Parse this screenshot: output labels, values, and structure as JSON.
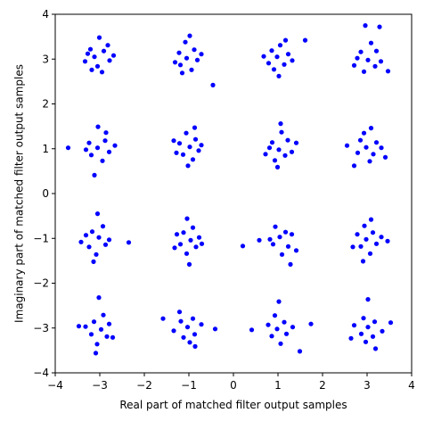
{
  "chart_data": {
    "type": "scatter",
    "title": "",
    "xlabel": "Real part of matched filter output samples",
    "ylabel": "Imaginary part of matched filter output samples",
    "xlim": [
      -4,
      4
    ],
    "ylim": [
      -4,
      4
    ],
    "xticks": [
      -4,
      -3,
      -2,
      -1,
      0,
      1,
      2,
      3,
      4
    ],
    "yticks": [
      -4,
      -3,
      -2,
      -1,
      0,
      1,
      2,
      3,
      4
    ],
    "x_tick_labels": [
      "−4",
      "−3",
      "−2",
      "−1",
      "0",
      "1",
      "2",
      "3",
      "4"
    ],
    "y_tick_labels": [
      "−4",
      "−3",
      "−2",
      "−1",
      "0",
      "1",
      "2",
      "3",
      "4"
    ],
    "grid": false,
    "legend": "none",
    "series": [
      {
        "marker": "circle",
        "color": "#0000ff",
        "constellation": "16-QAM",
        "points": [
          [
            -3.12,
            3.05
          ],
          [
            -2.91,
            3.18
          ],
          [
            -3.05,
            2.84
          ],
          [
            -2.78,
            2.97
          ],
          [
            -3.21,
            3.22
          ],
          [
            -2.95,
            2.71
          ],
          [
            -3.33,
            2.95
          ],
          [
            -2.82,
            3.31
          ],
          [
            -3.01,
            3.48
          ],
          [
            -3.18,
            2.76
          ],
          [
            -2.69,
            3.08
          ],
          [
            -3.27,
            3.12
          ],
          [
            -1.05,
            3.02
          ],
          [
            -0.88,
            3.21
          ],
          [
            -1.19,
            2.87
          ],
          [
            -0.94,
            2.76
          ],
          [
            -1.22,
            3.14
          ],
          [
            -0.81,
            2.98
          ],
          [
            -1.08,
            3.38
          ],
          [
            -0.72,
            3.11
          ],
          [
            -1.31,
            2.93
          ],
          [
            -0.98,
            3.52
          ],
          [
            -0.46,
            2.42
          ],
          [
            -1.15,
            2.69
          ],
          [
            0.98,
            3.05
          ],
          [
            1.14,
            2.88
          ],
          [
            0.86,
            3.19
          ],
          [
            1.23,
            3.11
          ],
          [
            0.79,
            2.91
          ],
          [
            1.05,
            3.31
          ],
          [
            1.32,
            2.97
          ],
          [
            0.91,
            2.77
          ],
          [
            1.17,
            3.42
          ],
          [
            0.68,
            3.06
          ],
          [
            1.61,
            3.42
          ],
          [
            1.02,
            2.62
          ],
          [
            3.02,
            2.98
          ],
          [
            2.86,
            3.16
          ],
          [
            3.18,
            2.84
          ],
          [
            2.93,
            2.72
          ],
          [
            3.21,
            3.18
          ],
          [
            2.78,
            3.02
          ],
          [
            3.09,
            3.36
          ],
          [
            3.31,
            2.95
          ],
          [
            2.71,
            2.86
          ],
          [
            2.96,
            3.75
          ],
          [
            3.28,
            3.72
          ],
          [
            3.47,
            2.73
          ],
          [
            -3.05,
            1.02
          ],
          [
            -2.88,
            1.18
          ],
          [
            -3.19,
            0.86
          ],
          [
            -2.79,
            0.93
          ],
          [
            -3.24,
            1.13
          ],
          [
            -2.94,
            0.73
          ],
          [
            -3.31,
            0.98
          ],
          [
            -2.86,
            1.36
          ],
          [
            -3.71,
            1.02
          ],
          [
            -3.12,
            0.41
          ],
          [
            -2.66,
            1.07
          ],
          [
            -3.04,
            1.49
          ],
          [
            -0.98,
            1.04
          ],
          [
            -1.13,
            0.87
          ],
          [
            -0.85,
            1.21
          ],
          [
            -1.21,
            1.12
          ],
          [
            -0.91,
            0.76
          ],
          [
            -1.06,
            1.35
          ],
          [
            -0.78,
            0.96
          ],
          [
            -1.28,
            0.91
          ],
          [
            -1.02,
            0.62
          ],
          [
            -0.87,
            1.47
          ],
          [
            -1.34,
            1.18
          ],
          [
            -0.72,
            1.08
          ],
          [
            1.02,
            0.98
          ],
          [
            0.87,
            1.14
          ],
          [
            1.16,
            0.85
          ],
          [
            0.93,
            0.74
          ],
          [
            1.22,
            1.19
          ],
          [
            0.81,
            1.02
          ],
          [
            1.08,
            1.37
          ],
          [
            1.31,
            0.93
          ],
          [
            0.72,
            0.88
          ],
          [
            0.99,
            0.59
          ],
          [
            1.41,
            1.13
          ],
          [
            1.06,
            1.56
          ],
          [
            2.98,
            1.03
          ],
          [
            3.14,
            0.88
          ],
          [
            2.85,
            1.19
          ],
          [
            3.21,
            1.14
          ],
          [
            2.79,
            0.91
          ],
          [
            3.06,
            0.72
          ],
          [
            3.32,
            1.02
          ],
          [
            2.93,
            1.35
          ],
          [
            2.55,
            1.07
          ],
          [
            3.41,
            0.81
          ],
          [
            3.09,
            1.46
          ],
          [
            2.71,
            0.62
          ],
          [
            -3.02,
            -0.98
          ],
          [
            -2.87,
            -1.14
          ],
          [
            -3.17,
            -0.85
          ],
          [
            -2.93,
            -0.73
          ],
          [
            -3.24,
            -1.19
          ],
          [
            -2.79,
            -1.03
          ],
          [
            -3.08,
            -1.36
          ],
          [
            -3.31,
            -0.93
          ],
          [
            -3.05,
            -0.45
          ],
          [
            -2.35,
            -1.09
          ],
          [
            -3.42,
            -1.08
          ],
          [
            -3.14,
            -1.52
          ],
          [
            -0.96,
            -1.04
          ],
          [
            -1.12,
            -0.87
          ],
          [
            -0.84,
            -1.19
          ],
          [
            -1.19,
            -1.13
          ],
          [
            -0.91,
            -0.76
          ],
          [
            -1.05,
            -1.34
          ],
          [
            -0.77,
            -0.98
          ],
          [
            -1.27,
            -0.91
          ],
          [
            -0.99,
            -1.58
          ],
          [
            -1.32,
            -1.21
          ],
          [
            -0.71,
            -1.12
          ],
          [
            -1.04,
            -0.56
          ],
          [
            1.04,
            -0.97
          ],
          [
            0.89,
            -1.13
          ],
          [
            1.17,
            -0.86
          ],
          [
            0.94,
            -0.74
          ],
          [
            1.23,
            -1.18
          ],
          [
            0.82,
            -1.02
          ],
          [
            1.09,
            -1.36
          ],
          [
            1.31,
            -0.91
          ],
          [
            0.58,
            -1.04
          ],
          [
            1.41,
            -1.27
          ],
          [
            0.21,
            -1.17
          ],
          [
            1.28,
            -1.58
          ],
          [
            2.98,
            -1.02
          ],
          [
            3.13,
            -0.87
          ],
          [
            2.86,
            -1.18
          ],
          [
            3.21,
            -1.12
          ],
          [
            2.78,
            -0.91
          ],
          [
            3.07,
            -1.34
          ],
          [
            3.32,
            -0.97
          ],
          [
            2.94,
            -0.72
          ],
          [
            2.68,
            -1.19
          ],
          [
            3.46,
            -1.06
          ],
          [
            3.09,
            -0.58
          ],
          [
            2.91,
            -1.51
          ],
          [
            -2.97,
            -3.03
          ],
          [
            -3.13,
            -2.86
          ],
          [
            -2.84,
            -3.19
          ],
          [
            -3.19,
            -3.14
          ],
          [
            -2.79,
            -2.91
          ],
          [
            -3.06,
            -3.36
          ],
          [
            -3.32,
            -2.97
          ],
          [
            -2.92,
            -2.71
          ],
          [
            -3.02,
            -2.32
          ],
          [
            -3.47,
            -2.96
          ],
          [
            -3.09,
            -3.56
          ],
          [
            -2.71,
            -3.21
          ],
          [
            -1.03,
            -2.98
          ],
          [
            -0.87,
            -3.14
          ],
          [
            -1.18,
            -2.85
          ],
          [
            -1.12,
            -3.21
          ],
          [
            -0.91,
            -2.79
          ],
          [
            -1.34,
            -3.06
          ],
          [
            -0.98,
            -3.32
          ],
          [
            -0.72,
            -2.92
          ],
          [
            -1.58,
            -2.79
          ],
          [
            -0.41,
            -3.02
          ],
          [
            -1.21,
            -2.64
          ],
          [
            -0.86,
            -3.41
          ],
          [
            0.98,
            -3.02
          ],
          [
            1.14,
            -2.87
          ],
          [
            0.86,
            -3.18
          ],
          [
            1.19,
            -3.13
          ],
          [
            0.78,
            -2.93
          ],
          [
            1.06,
            -3.35
          ],
          [
            1.33,
            -2.98
          ],
          [
            0.93,
            -2.72
          ],
          [
            1.74,
            -2.91
          ],
          [
            0.41,
            -3.04
          ],
          [
            1.02,
            -2.41
          ],
          [
            1.49,
            -3.52
          ],
          [
            3.02,
            -2.98
          ],
          [
            2.87,
            -3.13
          ],
          [
            3.17,
            -2.86
          ],
          [
            3.13,
            -3.19
          ],
          [
            2.92,
            -2.78
          ],
          [
            3.34,
            -3.07
          ],
          [
            2.97,
            -3.31
          ],
          [
            2.71,
            -2.94
          ],
          [
            3.02,
            -2.36
          ],
          [
            3.53,
            -2.88
          ],
          [
            2.64,
            -3.23
          ],
          [
            3.19,
            -3.46
          ]
        ]
      }
    ]
  }
}
